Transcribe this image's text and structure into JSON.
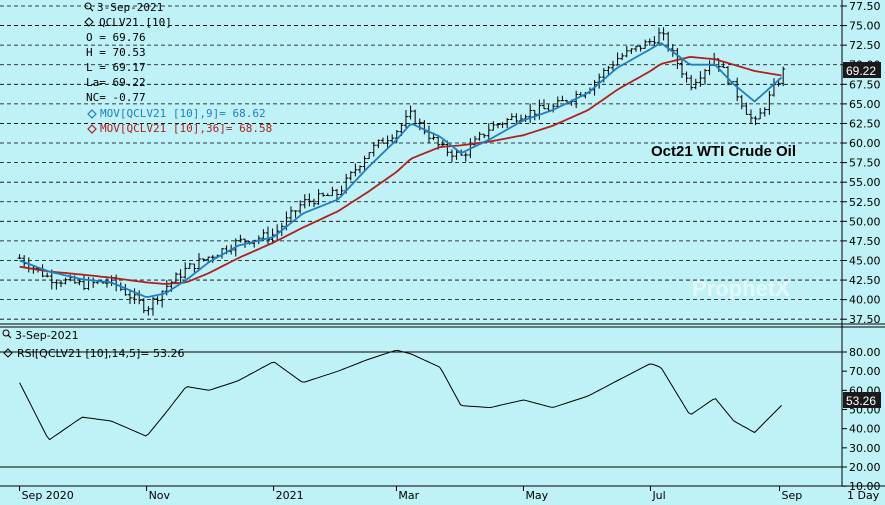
{
  "header": {
    "date": "3-Sep-2021",
    "symbol": "QCLV21 [10]",
    "open": "O = 69.76",
    "high": "H = 70.53",
    "low": "L = 69.17",
    "last": "La= 69.22",
    "net_change": "NC= -0.77",
    "ma_fast_label": "MOV[QCLV21 [10],9]= 68.62",
    "ma_slow_label": "MOV[QCLV21 [10],36]= 68.58"
  },
  "annotation": "Oct21 WTI Crude Oil",
  "watermark": "ProphetX",
  "price_badge": "69.22",
  "rsi_panel": {
    "date": "3-Sep-2021",
    "label": "RSI[QCLV21 [10],14,5]= 53.26",
    "badge": "53.26"
  },
  "x_axis": {
    "labels": [
      "Sep 2020",
      "Nov",
      "2021",
      "Mar",
      "May",
      "Jul",
      "Sep"
    ],
    "interval": "1 Day"
  },
  "colors": {
    "background": "#bff2f6",
    "ma_fast": "#1e7fc0",
    "ma_slow": "#b0201e",
    "bars": "#000000"
  },
  "chart_data": [
    {
      "type": "ohlc",
      "title": "Oct21 WTI Crude Oil",
      "ylim": [
        36.25,
        77.5
      ],
      "y_ticks": [
        "37.50",
        "40.00",
        "42.50",
        "45.00",
        "47.50",
        "50.00",
        "52.50",
        "55.00",
        "57.50",
        "60.00",
        "62.50",
        "65.00",
        "67.50",
        "70.00",
        "72.50",
        "75.00",
        "77.50"
      ],
      "x": [
        "2020-09-01",
        "2020-09-15",
        "2020-10-01",
        "2020-10-15",
        "2020-11-01",
        "2020-11-10",
        "2020-11-20",
        "2020-12-01",
        "2020-12-15",
        "2021-01-01",
        "2021-01-15",
        "2021-02-01",
        "2021-02-15",
        "2021-03-01",
        "2021-03-08",
        "2021-03-22",
        "2021-04-01",
        "2021-04-15",
        "2021-05-01",
        "2021-05-15",
        "2021-06-01",
        "2021-06-15",
        "2021-07-01",
        "2021-07-06",
        "2021-07-20",
        "2021-08-01",
        "2021-08-10",
        "2021-08-20",
        "2021-09-03"
      ],
      "close": [
        45.3,
        42.8,
        41.9,
        42.3,
        38.9,
        41.6,
        43.9,
        45.5,
        47.4,
        48.3,
        52.4,
        53.6,
        58.8,
        61.6,
        63.6,
        59.4,
        58.3,
        62.0,
        63.8,
        64.5,
        67.0,
        70.8,
        73.0,
        74.0,
        67.4,
        71.0,
        67.0,
        62.3,
        69.22
      ],
      "series": [
        {
          "name": "MOV[QCLV21 [10],9]",
          "values": [
            45.0,
            43.6,
            42.6,
            42.2,
            40.3,
            40.8,
            42.5,
            44.8,
            46.9,
            48.0,
            51.0,
            52.8,
            56.8,
            60.4,
            62.5,
            60.8,
            58.7,
            60.5,
            62.9,
            64.2,
            66.4,
            69.6,
            72.0,
            72.8,
            70.0,
            70.0,
            67.5,
            65.3,
            68.62
          ]
        },
        {
          "name": "MOV[QCLV21 [10],36]",
          "values": [
            44.2,
            43.6,
            43.2,
            42.8,
            42.2,
            42.0,
            42.2,
            43.4,
            45.3,
            47.3,
            49.2,
            51.3,
            53.7,
            56.3,
            58.0,
            59.5,
            59.7,
            60.2,
            61.0,
            62.2,
            64.2,
            66.8,
            69.2,
            70.1,
            71.0,
            70.7,
            70.0,
            69.2,
            68.58
          ]
        }
      ]
    },
    {
      "type": "line",
      "title": "RSI[QCLV21 [10],14,5]",
      "ylim": [
        10,
        90
      ],
      "y_ticks": [
        "10.00",
        "20.00",
        "30.00",
        "40.00",
        "50.00",
        "60.00",
        "70.00",
        "80.00"
      ],
      "reference_lines": [
        20,
        80
      ],
      "x": [
        "2020-09-01",
        "2020-09-15",
        "2020-10-01",
        "2020-10-15",
        "2020-11-01",
        "2020-11-10",
        "2020-11-20",
        "2020-12-01",
        "2020-12-15",
        "2021-01-01",
        "2021-01-15",
        "2021-02-01",
        "2021-02-15",
        "2021-03-01",
        "2021-03-08",
        "2021-03-22",
        "2021-04-01",
        "2021-04-15",
        "2021-05-01",
        "2021-05-15",
        "2021-06-01",
        "2021-06-15",
        "2021-07-01",
        "2021-07-06",
        "2021-07-20",
        "2021-08-01",
        "2021-08-10",
        "2021-08-20",
        "2021-09-03"
      ],
      "series": [
        {
          "name": "RSI",
          "values": [
            64,
            34,
            46,
            44,
            36,
            48,
            62,
            60,
            65,
            75,
            64,
            70,
            76,
            81,
            79,
            72,
            52,
            51,
            55,
            51,
            57,
            65,
            74,
            72,
            47,
            56,
            44,
            38,
            53.26
          ]
        }
      ]
    }
  ]
}
